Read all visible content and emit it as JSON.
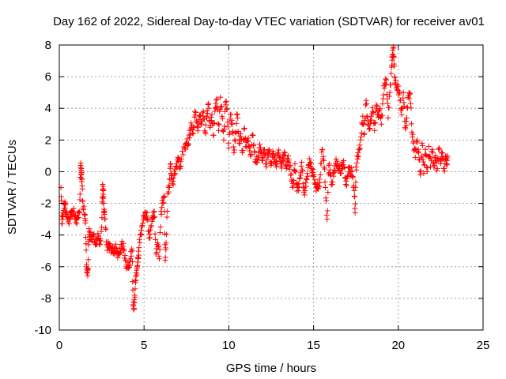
{
  "chart_data": {
    "type": "scatter",
    "title": "Day 162 of 2022, Sidereal Day-to-day VTEC variation (SDTVAR) for receiver av01",
    "xlabel": "GPS time / hours",
    "ylabel": "SDTVAR / TECUs",
    "xlim": [
      0,
      25
    ],
    "ylim": [
      -10,
      8
    ],
    "x_ticks": [
      "0",
      "5",
      "10",
      "15",
      "20",
      "25"
    ],
    "y_ticks": [
      "-10",
      "-8",
      "-6",
      "-4",
      "-2",
      "0",
      "2",
      "4",
      "6",
      "8"
    ],
    "grid": true,
    "marker": "+",
    "color": "#ff0000",
    "series": [
      {
        "name": "SDTVAR",
        "points": [
          [
            0.1,
            -1.0
          ],
          [
            0.15,
            -3.3
          ],
          [
            0.2,
            -2.6
          ],
          [
            0.3,
            -2.3
          ],
          [
            0.35,
            -2.0
          ],
          [
            0.4,
            -2.7
          ],
          [
            0.5,
            -2.9
          ],
          [
            0.6,
            -3.0
          ],
          [
            0.7,
            -2.7
          ],
          [
            0.8,
            -2.5
          ],
          [
            0.9,
            -2.8
          ],
          [
            1.0,
            -3.0
          ],
          [
            1.1,
            -2.9
          ],
          [
            1.2,
            -2.6
          ],
          [
            1.25,
            0.4
          ],
          [
            1.3,
            0.2
          ],
          [
            1.3,
            -0.2
          ],
          [
            1.35,
            -0.9
          ],
          [
            1.4,
            -2.3
          ],
          [
            1.5,
            -2.7
          ],
          [
            1.55,
            -3.1
          ],
          [
            1.6,
            -6.0
          ],
          [
            1.65,
            -6.4
          ],
          [
            1.7,
            -6.1
          ],
          [
            1.75,
            -3.6
          ],
          [
            1.8,
            -4.1
          ],
          [
            1.9,
            -4.3
          ],
          [
            2.0,
            -4.0
          ],
          [
            2.1,
            -4.5
          ],
          [
            2.2,
            -4.3
          ],
          [
            2.3,
            -4.2
          ],
          [
            2.4,
            -4.6
          ],
          [
            2.5,
            -3.5
          ],
          [
            2.55,
            -0.8
          ],
          [
            2.6,
            -1.2
          ],
          [
            2.6,
            -2.0
          ],
          [
            2.65,
            -2.6
          ],
          [
            2.7,
            -3.0
          ],
          [
            2.8,
            -4.6
          ],
          [
            2.9,
            -4.8
          ],
          [
            3.0,
            -4.7
          ],
          [
            3.1,
            -4.9
          ],
          [
            3.2,
            -5.0
          ],
          [
            3.3,
            -4.8
          ],
          [
            3.4,
            -5.2
          ],
          [
            3.5,
            -5.2
          ],
          [
            3.6,
            -5.1
          ],
          [
            3.7,
            -4.4
          ],
          [
            3.8,
            -5.0
          ],
          [
            3.9,
            -5.6
          ],
          [
            4.0,
            -6.0
          ],
          [
            4.1,
            -5.9
          ],
          [
            4.2,
            -5.5
          ],
          [
            4.3,
            -5.0
          ],
          [
            4.35,
            -8.4
          ],
          [
            4.4,
            -8.7
          ],
          [
            4.45,
            -7.8
          ],
          [
            4.5,
            -7.0
          ],
          [
            4.55,
            -6.4
          ],
          [
            4.6,
            -6.0
          ],
          [
            4.65,
            -5.4
          ],
          [
            4.7,
            -4.8
          ],
          [
            4.8,
            -4.0
          ],
          [
            4.9,
            -3.4
          ],
          [
            5.0,
            -2.8
          ],
          [
            5.1,
            -2.6
          ],
          [
            5.2,
            -3.0
          ],
          [
            5.3,
            -4.2
          ],
          [
            5.4,
            -3.5
          ],
          [
            5.5,
            -2.8
          ],
          [
            5.6,
            -2.5
          ],
          [
            5.7,
            -5.2
          ],
          [
            5.8,
            -4.5
          ],
          [
            5.9,
            -5.5
          ],
          [
            6.0,
            -2.5
          ],
          [
            6.1,
            -2.0
          ],
          [
            6.2,
            -1.6
          ],
          [
            6.25,
            -5.6
          ],
          [
            6.3,
            -4.5
          ],
          [
            6.4,
            -1.4
          ],
          [
            6.5,
            -1.0
          ],
          [
            6.55,
            0.5
          ],
          [
            6.6,
            -0.2
          ],
          [
            6.7,
            -0.6
          ],
          [
            6.8,
            -0.2
          ],
          [
            6.9,
            0.3
          ],
          [
            7.0,
            0.9
          ],
          [
            7.1,
            0.3
          ],
          [
            7.2,
            0.8
          ],
          [
            7.4,
            1.5
          ],
          [
            7.5,
            1.8
          ],
          [
            7.6,
            1.7
          ],
          [
            7.7,
            2.6
          ],
          [
            7.8,
            2.8
          ],
          [
            7.9,
            2.4
          ],
          [
            8.0,
            3.8
          ],
          [
            8.1,
            3.2
          ],
          [
            8.2,
            2.8
          ],
          [
            8.3,
            3.5
          ],
          [
            8.4,
            3.0
          ],
          [
            8.5,
            3.8
          ],
          [
            8.6,
            2.5
          ],
          [
            8.7,
            3.4
          ],
          [
            8.8,
            4.3
          ],
          [
            8.9,
            2.8
          ],
          [
            9.0,
            3.6
          ],
          [
            9.1,
            2.3
          ],
          [
            9.2,
            4.0
          ],
          [
            9.3,
            4.6
          ],
          [
            9.4,
            2.6
          ],
          [
            9.5,
            4.7
          ],
          [
            9.6,
            3.5
          ],
          [
            9.7,
            2.0
          ],
          [
            9.8,
            4.4
          ],
          [
            9.9,
            4.0
          ],
          [
            10.0,
            1.5
          ],
          [
            10.1,
            3.6
          ],
          [
            10.2,
            3.0
          ],
          [
            10.3,
            1.2
          ],
          [
            10.4,
            2.5
          ],
          [
            10.5,
            3.6
          ],
          [
            10.6,
            1.8
          ],
          [
            10.7,
            2.4
          ],
          [
            10.8,
            1.2
          ],
          [
            10.9,
            2.7
          ],
          [
            11.0,
            1.6
          ],
          [
            11.1,
            2.0
          ],
          [
            11.2,
            1.6
          ],
          [
            11.3,
            1.1
          ],
          [
            11.4,
            2.3
          ],
          [
            11.5,
            1.3
          ],
          [
            11.6,
            0.6
          ],
          [
            11.7,
            0.8
          ],
          [
            11.8,
            1.5
          ],
          [
            11.9,
            1.2
          ],
          [
            12.0,
            0.7
          ],
          [
            12.1,
            1.4
          ],
          [
            12.2,
            0.5
          ],
          [
            12.3,
            1.0
          ],
          [
            12.4,
            1.3
          ],
          [
            12.5,
            0.4
          ],
          [
            12.6,
            1.3
          ],
          [
            12.7,
            0.8
          ],
          [
            12.8,
            0.3
          ],
          [
            12.9,
            1.2
          ],
          [
            13.0,
            0.9
          ],
          [
            13.1,
            0.5
          ],
          [
            13.2,
            0.7
          ],
          [
            13.3,
            1.2
          ],
          [
            13.4,
            0.2
          ],
          [
            13.5,
            1.0
          ],
          [
            13.6,
            0.3
          ],
          [
            13.7,
            -0.6
          ],
          [
            13.8,
            -0.9
          ],
          [
            13.9,
            0.5
          ],
          [
            14.0,
            -0.8
          ],
          [
            14.1,
            -1.2
          ],
          [
            14.2,
            -0.4
          ],
          [
            14.3,
            0.6
          ],
          [
            14.4,
            -1.0
          ],
          [
            14.5,
            -1.2
          ],
          [
            14.6,
            -0.5
          ],
          [
            14.7,
            0.4
          ],
          [
            14.8,
            0.6
          ],
          [
            14.9,
            0.2
          ],
          [
            15.0,
            -0.3
          ],
          [
            15.1,
            -0.8
          ],
          [
            15.2,
            -1.0
          ],
          [
            15.3,
            -0.9
          ],
          [
            15.4,
            -0.2
          ],
          [
            15.5,
            1.4
          ],
          [
            15.6,
            0.7
          ],
          [
            15.7,
            -1.0
          ],
          [
            15.8,
            -3.0
          ],
          [
            15.9,
            0.4
          ],
          [
            16.0,
            -0.2
          ],
          [
            16.1,
            -0.8
          ],
          [
            16.2,
            0.1
          ],
          [
            16.3,
            0.5
          ],
          [
            16.4,
            0.4
          ],
          [
            16.5,
            0.2
          ],
          [
            16.6,
            -0.1
          ],
          [
            16.7,
            0.6
          ],
          [
            16.8,
            0.3
          ],
          [
            16.9,
            -0.8
          ],
          [
            17.0,
            -0.3
          ],
          [
            17.1,
            0.3
          ],
          [
            17.2,
            0.0
          ],
          [
            17.3,
            -0.3
          ],
          [
            17.4,
            -1.2
          ],
          [
            17.45,
            -2.6
          ],
          [
            17.5,
            0.3
          ],
          [
            17.6,
            0.8
          ],
          [
            17.7,
            1.4
          ],
          [
            17.8,
            2.2
          ],
          [
            17.9,
            3.5
          ],
          [
            18.0,
            2.4
          ],
          [
            18.1,
            4.5
          ],
          [
            18.2,
            3.0
          ],
          [
            18.3,
            2.7
          ],
          [
            18.4,
            3.5
          ],
          [
            18.5,
            3.8
          ],
          [
            18.6,
            2.6
          ],
          [
            18.7,
            4.2
          ],
          [
            18.8,
            3.6
          ],
          [
            18.9,
            3.9
          ],
          [
            19.0,
            3.0
          ],
          [
            19.1,
            4.6
          ],
          [
            19.2,
            5.6
          ],
          [
            19.3,
            5.8
          ],
          [
            19.4,
            3.4
          ],
          [
            19.5,
            5.0
          ],
          [
            19.6,
            6.6
          ],
          [
            19.65,
            7.4
          ],
          [
            19.7,
            7.8
          ],
          [
            19.75,
            6.8
          ],
          [
            19.8,
            5.6
          ],
          [
            19.9,
            5.3
          ],
          [
            20.0,
            5.4
          ],
          [
            20.1,
            4.5
          ],
          [
            20.2,
            3.6
          ],
          [
            20.3,
            5.0
          ],
          [
            20.4,
            2.8
          ],
          [
            20.5,
            3.4
          ],
          [
            20.6,
            4.8
          ],
          [
            20.7,
            4.9
          ],
          [
            20.8,
            2.5
          ],
          [
            20.9,
            1.9
          ],
          [
            21.0,
            0.9
          ],
          [
            21.1,
            2.0
          ],
          [
            21.2,
            1.2
          ],
          [
            21.3,
            -0.2
          ],
          [
            21.4,
            1.8
          ],
          [
            21.5,
            -0.1
          ],
          [
            21.6,
            1.4
          ],
          [
            21.7,
            0.0
          ],
          [
            21.8,
            1.6
          ],
          [
            21.9,
            0.3
          ],
          [
            22.0,
            1.4
          ],
          [
            22.1,
            0.3
          ],
          [
            22.2,
            1.0
          ],
          [
            22.3,
            0.2
          ],
          [
            22.4,
            1.5
          ],
          [
            22.5,
            0.5
          ],
          [
            22.6,
            1.2
          ],
          [
            22.7,
            0.2
          ],
          [
            22.8,
            0.8
          ],
          [
            22.85,
            0.5
          ],
          [
            22.9,
            1.0
          ]
        ]
      }
    ]
  }
}
